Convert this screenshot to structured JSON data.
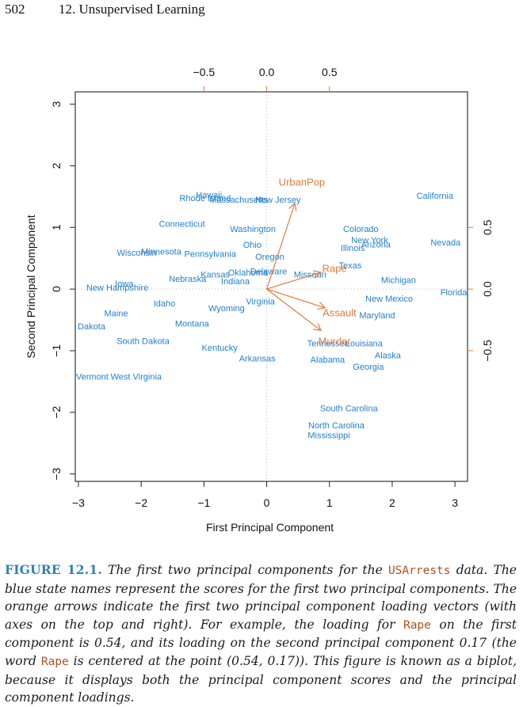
{
  "header": {
    "page_number": "502",
    "running_title": "12.  Unsupervised Learning"
  },
  "chart_data": {
    "type": "biplot",
    "xlabel": "First Principal Component",
    "ylabel": "Second Principal Component",
    "xlim": [
      -3.05,
      3.2
    ],
    "ylim": [
      -3.12,
      3.2
    ],
    "x_ticks": [
      -3,
      -2,
      -1,
      0,
      1,
      2,
      3
    ],
    "y_ticks": [
      -3,
      -2,
      -1,
      0,
      1,
      2,
      3
    ],
    "x_tick_labels": [
      "−3",
      "−2",
      "−1",
      "0",
      "1",
      "2",
      "3"
    ],
    "y_tick_labels": [
      "−3",
      "−2",
      "−1",
      "0",
      "1",
      "2",
      "3"
    ],
    "top_ticks": [
      -0.5,
      0.0,
      0.5
    ],
    "top_tick_labels": [
      "−0.5",
      "0.0",
      "0.5"
    ],
    "right_ticks": [
      0.5,
      0.0,
      -0.5
    ],
    "right_tick_labels": [
      "0.5",
      "0.0",
      "−0.5"
    ],
    "loading_scale": 0.5,
    "colors": {
      "scores": "#1f7fd0",
      "loadings": "#e07b3c",
      "frame": "#222222"
    },
    "scores": [
      {
        "name": "Hawaii",
        "x": -0.92,
        "y": 1.53
      },
      {
        "name": "Rhode Island",
        "x": -0.98,
        "y": 1.48
      },
      {
        "name": "Massachusetts",
        "x": -0.45,
        "y": 1.45
      },
      {
        "name": "New Jersey",
        "x": 0.18,
        "y": 1.45
      },
      {
        "name": "California",
        "x": 2.68,
        "y": 1.52
      },
      {
        "name": "Connecticut",
        "x": -1.35,
        "y": 1.06
      },
      {
        "name": "Washington",
        "x": -0.22,
        "y": 0.98
      },
      {
        "name": "Colorado",
        "x": 1.5,
        "y": 0.98
      },
      {
        "name": "New York",
        "x": 1.64,
        "y": 0.8
      },
      {
        "name": "Arizona",
        "x": 1.74,
        "y": 0.73
      },
      {
        "name": "Illinois",
        "x": 1.37,
        "y": 0.67
      },
      {
        "name": "Nevada",
        "x": 2.85,
        "y": 0.76
      },
      {
        "name": "Ohio",
        "x": -0.23,
        "y": 0.72
      },
      {
        "name": "Wisconsin",
        "x": -2.07,
        "y": 0.59
      },
      {
        "name": "Minnesota",
        "x": -1.68,
        "y": 0.61
      },
      {
        "name": "Pennsylvania",
        "x": -0.9,
        "y": 0.57
      },
      {
        "name": "Oregon",
        "x": 0.05,
        "y": 0.53
      },
      {
        "name": "Texas",
        "x": 1.33,
        "y": 0.39
      },
      {
        "name": "Kansas",
        "x": -0.82,
        "y": 0.24
      },
      {
        "name": "Oklahoma",
        "x": -0.3,
        "y": 0.27
      },
      {
        "name": "Delaware",
        "x": 0.03,
        "y": 0.29
      },
      {
        "name": "Missouri",
        "x": 0.69,
        "y": 0.24
      },
      {
        "name": "Nebraska",
        "x": -1.26,
        "y": 0.17
      },
      {
        "name": "Indiana",
        "x": -0.5,
        "y": 0.13
      },
      {
        "name": "Iowa",
        "x": -2.27,
        "y": 0.09
      },
      {
        "name": "New Hampshire",
        "x": -2.38,
        "y": 0.03
      },
      {
        "name": "Michigan",
        "x": 2.1,
        "y": 0.15
      },
      {
        "name": "Florida",
        "x": 2.98,
        "y": -0.05
      },
      {
        "name": "Idaho",
        "x": -1.63,
        "y": -0.23
      },
      {
        "name": "Virginia",
        "x": -0.1,
        "y": -0.2
      },
      {
        "name": "Wyoming",
        "x": -0.64,
        "y": -0.31
      },
      {
        "name": "New Mexico",
        "x": 1.95,
        "y": -0.15
      },
      {
        "name": "Maine",
        "x": -2.4,
        "y": -0.39
      },
      {
        "name": "Maryland",
        "x": 1.76,
        "y": -0.42
      },
      {
        "name": "Montana",
        "x": -1.19,
        "y": -0.56
      },
      {
        "name": "North Dakota",
        "x": -2.98,
        "y": -0.6
      },
      {
        "name": "South Dakota",
        "x": -1.97,
        "y": -0.84
      },
      {
        "name": "Tennessee",
        "x": 0.98,
        "y": -0.88
      },
      {
        "name": "Louisiana",
        "x": 1.55,
        "y": -0.88
      },
      {
        "name": "Kentucky",
        "x": -0.75,
        "y": -0.95
      },
      {
        "name": "Arkansas",
        "x": -0.15,
        "y": -1.12
      },
      {
        "name": "Alabama",
        "x": 0.97,
        "y": -1.14
      },
      {
        "name": "Alaska",
        "x": 1.93,
        "y": -1.07
      },
      {
        "name": "Georgia",
        "x": 1.62,
        "y": -1.26
      },
      {
        "name": "Vermont",
        "x": -2.78,
        "y": -1.42
      },
      {
        "name": "West Virginia",
        "x": -2.08,
        "y": -1.42
      },
      {
        "name": "South Carolina",
        "x": 1.31,
        "y": -1.93
      },
      {
        "name": "North Carolina",
        "x": 1.11,
        "y": -2.21
      },
      {
        "name": "Mississippi",
        "x": 0.99,
        "y": -2.37
      }
    ],
    "loadings": [
      {
        "name": "Murder",
        "x": 0.54,
        "y": -0.42
      },
      {
        "name": "Assault",
        "x": 0.58,
        "y": -0.19
      },
      {
        "name": "UrbanPop",
        "x": 0.28,
        "y": 0.87
      },
      {
        "name": "Rape",
        "x": 0.54,
        "y": 0.17
      }
    ]
  },
  "caption": {
    "label": "FIGURE 12.1.",
    "parts": [
      {
        "t": "text",
        "v": " The first two principal components for the "
      },
      {
        "t": "code",
        "v": "USArrests"
      },
      {
        "t": "text",
        "v": " data. The blue state names represent the scores for the first two principal components. The orange arrows indicate the first two principal component loading vectors (with axes on the top and right). For example, the loading for "
      },
      {
        "t": "code",
        "v": "Rape"
      },
      {
        "t": "text",
        "v": " on the first component is 0.54, and its loading on the second principal component 0.17 (the word "
      },
      {
        "t": "code",
        "v": "Rape"
      },
      {
        "t": "text",
        "v": " is centered at the point (0.54, 0.17)). This figure is known as a biplot, because it displays both the principal component scores and the principal component loadings."
      }
    ]
  }
}
